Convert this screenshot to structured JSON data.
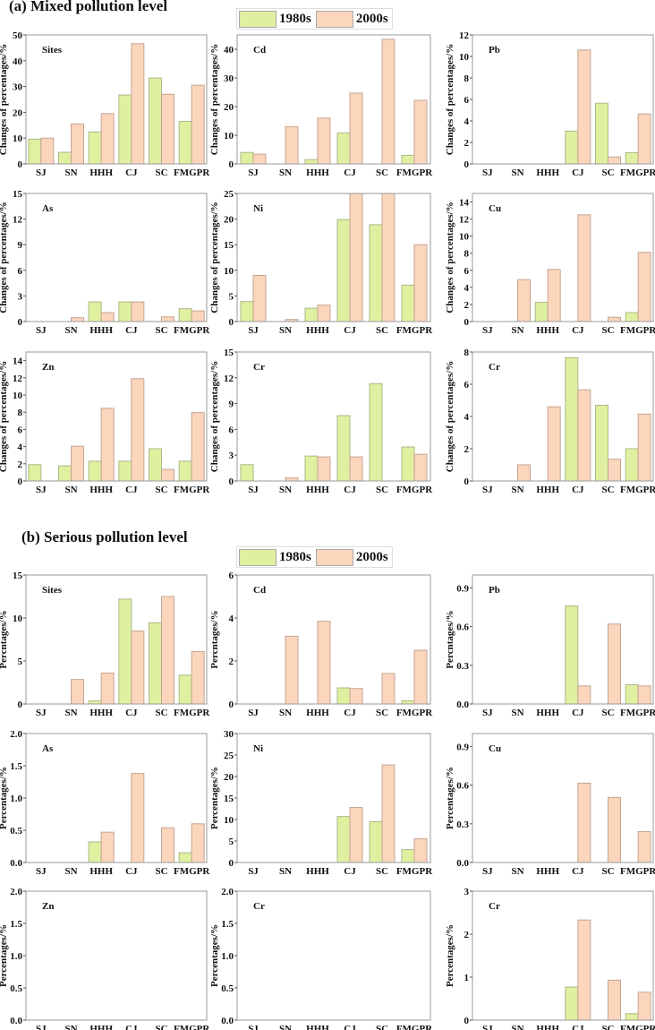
{
  "colors": {
    "1980s": "#dff0a0",
    "1980s_edge": "#a9b98a",
    "2000s": "#fcd5bd",
    "2000s_edge": "#c4a592",
    "frame": "#9a9a9a"
  },
  "sections": [
    {
      "title": "(a) Mixed pollution level",
      "legend": [
        "1980s",
        "2000s"
      ]
    },
    {
      "title": "(b)  Serious pollution level",
      "legend": [
        "1980s",
        "2000s"
      ]
    }
  ],
  "chart_data": [
    {
      "type": "bar",
      "section": 0,
      "title": "Sites",
      "ylabel": "Changes of percentages/%",
      "ylim": [
        0,
        50
      ],
      "yticks": [
        "0",
        "10",
        "20",
        "30",
        "40",
        "50"
      ],
      "categories": [
        "SJ",
        "SN",
        "HHH",
        "CJ",
        "SC",
        "FMGPR"
      ],
      "series": [
        {
          "name": "1980s",
          "values": [
            9.6,
            4.5,
            12.4,
            26.7,
            33.3,
            16.5
          ]
        },
        {
          "name": "2000s",
          "values": [
            10,
            15.5,
            19.5,
            46.6,
            27,
            30.5
          ]
        }
      ]
    },
    {
      "type": "bar",
      "section": 0,
      "title": "Cd",
      "ylabel": "Changes of percentages/%",
      "ylim": [
        0,
        45
      ],
      "yticks": [
        "0",
        "10",
        "20",
        "30",
        "40"
      ],
      "categories": [
        "SJ",
        "SN",
        "HHH",
        "CJ",
        "SC",
        "FMGPR"
      ],
      "series": [
        {
          "name": "1980s",
          "values": [
            4,
            0,
            1.5,
            10.8,
            0,
            3
          ]
        },
        {
          "name": "2000s",
          "values": [
            3.4,
            13,
            16,
            24.7,
            43.5,
            22.2
          ]
        }
      ]
    },
    {
      "type": "bar",
      "section": 0,
      "title": "Pb",
      "ylabel": "Changes of percentages/%",
      "ylim": [
        0,
        12
      ],
      "yticks": [
        "0",
        "2",
        "4",
        "6",
        "8",
        "10",
        "12"
      ],
      "categories": [
        "SJ",
        "SN",
        "HHH",
        "CJ",
        "SC",
        "FMGPR"
      ],
      "series": [
        {
          "name": "1980s",
          "values": [
            0,
            0,
            0,
            3.05,
            5.65,
            1.05
          ]
        },
        {
          "name": "2000s",
          "values": [
            0,
            0,
            0,
            10.6,
            0.65,
            4.65
          ]
        }
      ]
    },
    {
      "type": "bar",
      "section": 0,
      "title": "As",
      "ylabel": "Changes of percentages/%",
      "ylim": [
        0,
        15
      ],
      "yticks": [
        "0",
        "3",
        "6",
        "9",
        "12",
        "15"
      ],
      "categories": [
        "SJ",
        "SN",
        "HHH",
        "CJ",
        "SC",
        "FMGPR"
      ],
      "series": [
        {
          "name": "1980s",
          "values": [
            0,
            0,
            2.3,
            2.3,
            0,
            1.5
          ]
        },
        {
          "name": "2000s",
          "values": [
            0,
            0.45,
            1.05,
            2.3,
            0.55,
            1.25
          ]
        }
      ]
    },
    {
      "type": "bar",
      "section": 0,
      "title": "Ni",
      "ylabel": "Changes of percentages/%",
      "ylim": [
        0,
        25
      ],
      "yticks": [
        "0",
        "5",
        "10",
        "15",
        "20",
        "25"
      ],
      "categories": [
        "SJ",
        "SN",
        "HHH",
        "CJ",
        "SC",
        "FMGPR"
      ],
      "series": [
        {
          "name": "1980s",
          "values": [
            3.9,
            0,
            2.6,
            19.9,
            18.9,
            7.1
          ]
        },
        {
          "name": "2000s",
          "values": [
            9,
            0.4,
            3.2,
            25,
            25,
            15
          ]
        }
      ]
    },
    {
      "type": "bar",
      "section": 0,
      "title": "Cu",
      "ylabel": "Changes of percentages/%",
      "ylim": [
        0,
        15
      ],
      "yticks": [
        "0",
        "2",
        "4",
        "6",
        "8",
        "10",
        "12",
        "14"
      ],
      "categories": [
        "SJ",
        "SN",
        "HHH",
        "CJ",
        "SC",
        "FMGPR"
      ],
      "series": [
        {
          "name": "1980s",
          "values": [
            0,
            0,
            2.25,
            0,
            0,
            1.05
          ]
        },
        {
          "name": "2000s",
          "values": [
            0,
            4.9,
            6.1,
            12.5,
            0.5,
            8.1
          ]
        }
      ]
    },
    {
      "type": "bar",
      "section": 0,
      "title": "Zn",
      "ylabel": "Changes of percentages/%",
      "ylim": [
        0,
        15
      ],
      "yticks": [
        "0",
        "2",
        "4",
        "6",
        "8",
        "10",
        "12",
        "14"
      ],
      "categories": [
        "SJ",
        "SN",
        "HHH",
        "CJ",
        "SC",
        "FMGPR"
      ],
      "series": [
        {
          "name": "1980s",
          "values": [
            1.9,
            1.75,
            2.3,
            2.3,
            3.75,
            2.3
          ]
        },
        {
          "name": "2000s",
          "values": [
            0,
            4.05,
            8.45,
            11.9,
            1.35,
            7.95
          ]
        }
      ]
    },
    {
      "type": "bar",
      "section": 0,
      "title": "Cr",
      "ylabel": "Changes of percentages/%",
      "ylim": [
        0,
        15
      ],
      "yticks": [
        "0",
        "3",
        "6",
        "9",
        "12",
        "15"
      ],
      "categories": [
        "SJ",
        "SN",
        "HHH",
        "CJ",
        "SC",
        "FMGPR"
      ],
      "series": [
        {
          "name": "1980s",
          "values": [
            1.9,
            0,
            2.9,
            7.6,
            11.3,
            3.95
          ]
        },
        {
          "name": "2000s",
          "values": [
            0,
            0.35,
            2.8,
            2.8,
            0,
            3.1
          ]
        }
      ]
    },
    {
      "type": "bar",
      "section": 0,
      "title": "Cr",
      "ylabel": "Changes of percentages/%",
      "ylim": [
        0,
        8
      ],
      "yticks": [
        "0",
        "2",
        "4",
        "6",
        "8"
      ],
      "categories": [
        "SJ",
        "SN",
        "HHH",
        "CJ",
        "SC",
        "FMGPR"
      ],
      "series": [
        {
          "name": "1980s",
          "values": [
            0,
            0,
            0,
            7.65,
            4.7,
            2.0
          ]
        },
        {
          "name": "2000s",
          "values": [
            0,
            1.0,
            4.6,
            5.65,
            1.35,
            4.15
          ]
        }
      ]
    },
    {
      "type": "bar",
      "section": 1,
      "title": "Sites",
      "ylabel": "Percntages/%",
      "ylim": [
        0,
        15
      ],
      "yticks": [
        "0",
        "5",
        "10",
        "15"
      ],
      "categories": [
        "SJ",
        "SN",
        "HHH",
        "CJ",
        "SC",
        "FMGPR"
      ],
      "series": [
        {
          "name": "1980s",
          "values": [
            0,
            0,
            0.35,
            12.2,
            9.45,
            3.35
          ]
        },
        {
          "name": "2000s",
          "values": [
            0,
            2.85,
            3.6,
            8.5,
            12.5,
            6.1
          ]
        }
      ]
    },
    {
      "type": "bar",
      "section": 1,
      "title": "Cd",
      "ylabel": "Percntages/%",
      "ylim": [
        0,
        6
      ],
      "yticks": [
        "0",
        "2",
        "4",
        "6"
      ],
      "categories": [
        "SJ",
        "SN",
        "HHH",
        "CJ",
        "SC",
        "FMGPR"
      ],
      "series": [
        {
          "name": "1980s",
          "values": [
            0,
            0,
            0,
            0.75,
            0,
            0.15
          ]
        },
        {
          "name": "2000s",
          "values": [
            0,
            3.15,
            3.85,
            0.72,
            1.42,
            2.5
          ]
        }
      ]
    },
    {
      "type": "bar",
      "section": 1,
      "title": "Pb",
      "ylabel": "Percntages/%",
      "ylim": [
        0,
        1.0
      ],
      "yticks": [
        "0.0",
        "0.3",
        "0.6",
        "0.9"
      ],
      "categories": [
        "SJ",
        "SN",
        "HHH",
        "CJ",
        "SC",
        "FMGPR"
      ],
      "series": [
        {
          "name": "1980s",
          "values": [
            0,
            0,
            0,
            0.76,
            0,
            0.15
          ]
        },
        {
          "name": "2000s",
          "values": [
            0,
            0,
            0,
            0.14,
            0.62,
            0.14
          ]
        }
      ]
    },
    {
      "type": "bar",
      "section": 1,
      "title": "As",
      "ylabel": "Percentages/%",
      "ylim": [
        0,
        2.0
      ],
      "yticks": [
        "0.0",
        "0.5",
        "1.0",
        "1.5",
        "2.0"
      ],
      "categories": [
        "SJ",
        "SN",
        "HHH",
        "CJ",
        "SC",
        "FMGPR"
      ],
      "series": [
        {
          "name": "1980s",
          "values": [
            0,
            0,
            0.32,
            0,
            0,
            0.15
          ]
        },
        {
          "name": "2000s",
          "values": [
            0,
            0,
            0.47,
            1.38,
            0.54,
            0.6
          ]
        }
      ]
    },
    {
      "type": "bar",
      "section": 1,
      "title": "Ni",
      "ylabel": "Percentages/%",
      "ylim": [
        0,
        30
      ],
      "yticks": [
        "0",
        "5",
        "10",
        "15",
        "20",
        "25",
        "30"
      ],
      "categories": [
        "SJ",
        "SN",
        "HHH",
        "CJ",
        "SC",
        "FMGPR"
      ],
      "series": [
        {
          "name": "1980s",
          "values": [
            0,
            0,
            0,
            10.7,
            9.5,
            3.0
          ]
        },
        {
          "name": "2000s",
          "values": [
            0,
            0,
            0,
            12.8,
            22.7,
            5.5
          ]
        }
      ]
    },
    {
      "type": "bar",
      "section": 1,
      "title": "Cu",
      "ylabel": "Percentages/%",
      "ylim": [
        0,
        1.0
      ],
      "yticks": [
        "0.0",
        "0.3",
        "0.6",
        "0.9"
      ],
      "categories": [
        "SJ",
        "SN",
        "HHH",
        "CJ",
        "SC",
        "FMGPR"
      ],
      "series": [
        {
          "name": "1980s",
          "values": [
            0,
            0,
            0,
            0,
            0,
            0
          ]
        },
        {
          "name": "2000s",
          "values": [
            0,
            0,
            0,
            0.615,
            0.505,
            0.24
          ]
        }
      ]
    },
    {
      "type": "bar",
      "section": 1,
      "title": "Zn",
      "ylabel": "Percentages/%",
      "ylim": [
        0,
        2.0
      ],
      "yticks": [
        "0.0",
        "0.5",
        "1.0",
        "1.5",
        "2.0"
      ],
      "categories": [
        "SJ",
        "SN",
        "HHH",
        "CJ",
        "SC",
        "FMGPR"
      ],
      "series": [
        {
          "name": "1980s",
          "values": [
            0,
            0,
            0,
            0,
            0,
            0
          ]
        },
        {
          "name": "2000s",
          "values": [
            0,
            0,
            0,
            0,
            0,
            0
          ]
        }
      ]
    },
    {
      "type": "bar",
      "section": 1,
      "title": "Cr",
      "ylabel": "Percentages/%",
      "ylim": [
        0,
        2.0
      ],
      "yticks": [
        "0.0",
        "0.5",
        "1.0",
        "1.5",
        "2.0"
      ],
      "categories": [
        "SJ",
        "SN",
        "HHH",
        "CJ",
        "SC",
        "FMGPR"
      ],
      "series": [
        {
          "name": "1980s",
          "values": [
            0,
            0,
            0,
            0,
            0,
            0
          ]
        },
        {
          "name": "2000s",
          "values": [
            0,
            0,
            0,
            0,
            0,
            0
          ]
        }
      ]
    },
    {
      "type": "bar",
      "section": 1,
      "title": "Cr",
      "ylabel": "Percentages/%",
      "ylim": [
        0,
        3
      ],
      "yticks": [
        "0",
        "1",
        "2",
        "3"
      ],
      "categories": [
        "SJ",
        "SN",
        "HHH",
        "CJ",
        "SC",
        "FMGPR"
      ],
      "series": [
        {
          "name": "1980s",
          "values": [
            0,
            0,
            0,
            0.77,
            0,
            0.15
          ]
        },
        {
          "name": "2000s",
          "values": [
            0,
            0,
            0,
            2.33,
            0.93,
            0.65
          ]
        }
      ]
    }
  ]
}
